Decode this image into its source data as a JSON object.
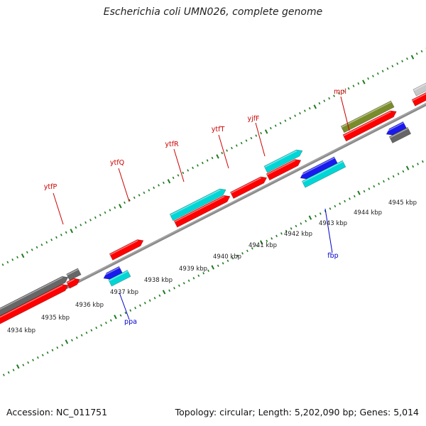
{
  "title": "Escherichia coli UMN026, complete genome",
  "footer": {
    "accession": "Accession: NC_011751",
    "summary": "Topology: circular; Length: 5,202,090 bp; Genes: 5,014"
  },
  "colors": {
    "backbone": "#8a8a8a",
    "ticks": "#1e7a1e",
    "forward_label": "#cc0000",
    "reverse_label": "#0000cc",
    "cds": "#ff0000",
    "rna": "#00d6d6",
    "reverse_cds": "#1a1aee",
    "pseudo": "#666666",
    "misc": "#7a8c2a",
    "other": "#c8c8c8"
  },
  "kbp_labels": [
    "4934 kbp",
    "4935 kbp",
    "4936 kbp",
    "4937 kbp",
    "4938 kbp",
    "4939 kbp",
    "4940 kbp",
    "4941 kbp",
    "4942 kbp",
    "4943 kbp",
    "4944 kbp",
    "4945 kbp"
  ],
  "forward_genes": [
    "ytfP",
    "ytfQ",
    "ytfR",
    "ytfT",
    "yjfF",
    "mpl"
  ],
  "reverse_genes": [
    "ppa",
    "fbp"
  ]
}
